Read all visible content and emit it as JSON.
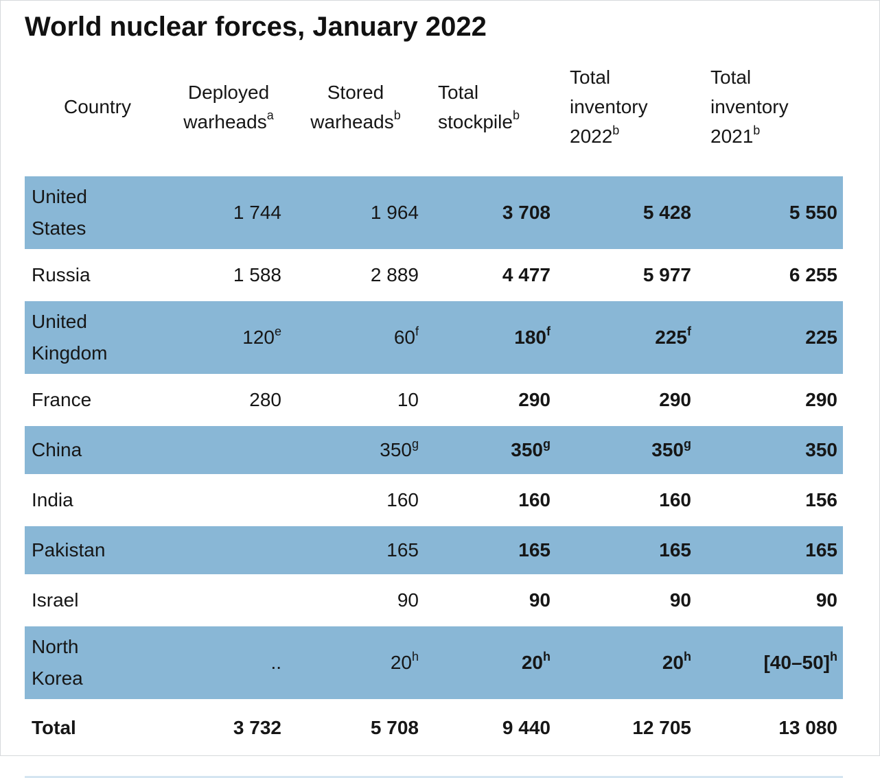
{
  "chart_data": {
    "type": "table",
    "title": "World nuclear forces, January 2022",
    "colors": {
      "row_shade": "#89b7d6",
      "text": "#161616",
      "bottom_rule": "#d4e5f1",
      "background": "#ffffff"
    },
    "columns_plain": [
      "Country",
      "Deployed warheads (a)",
      "Stored warheads (b)",
      "Total stockpile (b)",
      "Total inventory 2022 (b)",
      "Total inventory 2021 (b)"
    ],
    "headers": [
      {
        "lines": [
          "Country"
        ],
        "sup": null,
        "align": "first"
      },
      {
        "lines": [
          "Deployed",
          "warheads"
        ],
        "sup": "a",
        "align": "center"
      },
      {
        "lines": [
          "Stored",
          "warheads"
        ],
        "sup": "b",
        "align": "center"
      },
      {
        "lines": [
          "Total",
          "stockpile"
        ],
        "sup": "b",
        "align": "left"
      },
      {
        "lines": [
          "Total",
          "inventory",
          "2022"
        ],
        "sup": "b",
        "align": "left"
      },
      {
        "lines": [
          "Total",
          "inventory",
          "2021"
        ],
        "sup": "b",
        "align": "left"
      }
    ],
    "bold_columns": [
      2,
      3,
      4
    ],
    "rows": [
      {
        "country": "United States",
        "country_lines": [
          "United",
          "States"
        ],
        "shaded": true,
        "total": false,
        "cells": [
          "1 744",
          "1 964",
          "3 708",
          "5 428",
          "5 550"
        ]
      },
      {
        "country": "Russia",
        "shaded": false,
        "total": false,
        "cells": [
          "1 588",
          "2 889",
          "4 477",
          "5 977",
          "6 255"
        ]
      },
      {
        "country": "United Kingdom",
        "country_lines": [
          "United",
          "Kingdom"
        ],
        "shaded": true,
        "total": false,
        "cells": [
          "120^e",
          "60^f",
          "180^f",
          "225^f",
          "225"
        ]
      },
      {
        "country": "France",
        "shaded": false,
        "total": false,
        "cells": [
          "280",
          "10",
          "290",
          "290",
          "290"
        ]
      },
      {
        "country": "China",
        "shaded": true,
        "total": false,
        "cells": [
          "",
          "350^g",
          "350^g",
          "350^g",
          "350"
        ]
      },
      {
        "country": "India",
        "shaded": false,
        "total": false,
        "cells": [
          "",
          "160",
          "160",
          "160",
          "156"
        ]
      },
      {
        "country": "Pakistan",
        "shaded": true,
        "total": false,
        "cells": [
          "",
          "165",
          "165",
          "165",
          "165"
        ]
      },
      {
        "country": "Israel",
        "shaded": false,
        "total": false,
        "cells": [
          "",
          "90",
          "90",
          "90",
          "90"
        ]
      },
      {
        "country": "North Korea",
        "country_lines": [
          "North",
          "Korea"
        ],
        "shaded": true,
        "total": false,
        "cells": [
          "..",
          "20^h",
          "20^h",
          "20^h",
          "[40–50]^h"
        ]
      },
      {
        "country": "Total",
        "shaded": false,
        "total": true,
        "cells": [
          "3 732",
          "5 708",
          "9 440",
          "12 705",
          "13 080"
        ]
      }
    ]
  }
}
